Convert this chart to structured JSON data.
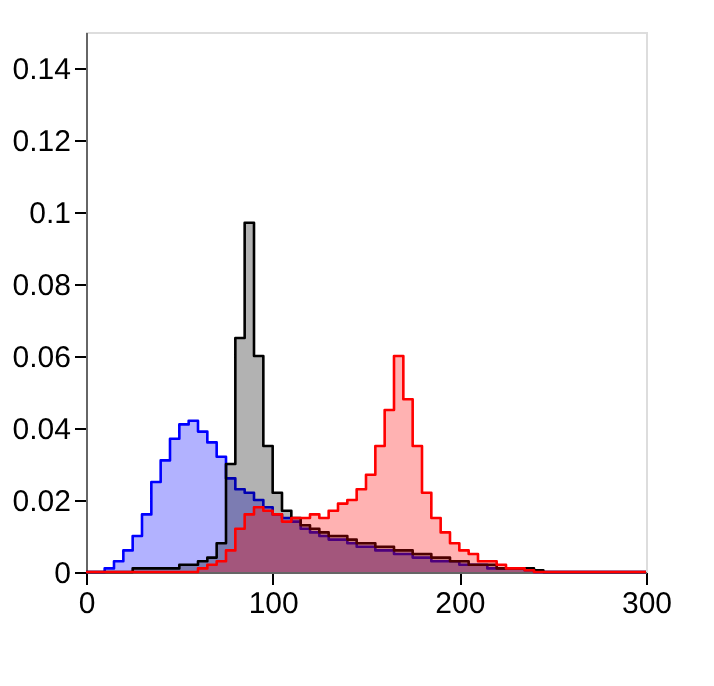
{
  "chart_data": {
    "type": "histogram",
    "bins": [
      0,
      5,
      10,
      15,
      20,
      25,
      30,
      35,
      40,
      45,
      50,
      55,
      60,
      65,
      70,
      75,
      80,
      85,
      90,
      95,
      100,
      105,
      110,
      115,
      120,
      125,
      130,
      135,
      140,
      145,
      150,
      155,
      160,
      165,
      170,
      175,
      180,
      185,
      190,
      195,
      200,
      205,
      210,
      215,
      220,
      225,
      230,
      235,
      240,
      245,
      250,
      255,
      260,
      265,
      270,
      275,
      280,
      285,
      290,
      295,
      300
    ],
    "series": [
      {
        "color": "#0000ff",
        "values": [
          0,
          0,
          0.001,
          0.003,
          0.006,
          0.01,
          0.016,
          0.025,
          0.031,
          0.037,
          0.041,
          0.042,
          0.039,
          0.036,
          0.032,
          0.026,
          0.023,
          0.022,
          0.02,
          0.018,
          0.016,
          0.015,
          0.014,
          0.012,
          0.011,
          0.01,
          0.009,
          0.009,
          0.008,
          0.007,
          0.007,
          0.006,
          0.006,
          0.005,
          0.005,
          0.004,
          0.004,
          0.003,
          0.003,
          0.003,
          0.002,
          0.002,
          0.002,
          0.001,
          0.001,
          0.001,
          0.001,
          0.0005,
          0,
          0,
          0,
          0,
          0,
          0,
          0,
          0,
          0,
          0,
          0,
          0
        ]
      },
      {
        "color": "#000000",
        "values": [
          0,
          0,
          0,
          0,
          0,
          0.001,
          0.001,
          0.001,
          0.001,
          0.001,
          0.002,
          0.002,
          0.003,
          0.004,
          0.008,
          0.03,
          0.065,
          0.097,
          0.06,
          0.035,
          0.022,
          0.017,
          0.015,
          0.013,
          0.012,
          0.011,
          0.01,
          0.01,
          0.009,
          0.008,
          0.008,
          0.007,
          0.007,
          0.006,
          0.006,
          0.005,
          0.005,
          0.004,
          0.004,
          0.003,
          0.003,
          0.002,
          0.002,
          0.002,
          0.001,
          0.001,
          0.001,
          0.001,
          0.0005,
          0,
          0,
          0,
          0,
          0,
          0,
          0,
          0,
          0,
          0,
          0
        ]
      },
      {
        "color": "#ff0000",
        "values": [
          0,
          0,
          0,
          0,
          0,
          0,
          0,
          0,
          0,
          0,
          0,
          0,
          0.001,
          0.002,
          0.003,
          0.006,
          0.012,
          0.016,
          0.018,
          0.017,
          0.016,
          0.014,
          0.015,
          0.015,
          0.016,
          0.015,
          0.017,
          0.019,
          0.02,
          0.023,
          0.027,
          0.035,
          0.045,
          0.06,
          0.048,
          0.035,
          0.022,
          0.015,
          0.011,
          0.008,
          0.006,
          0.005,
          0.003,
          0.003,
          0.002,
          0.001,
          0.001,
          0.0005,
          0,
          0,
          0,
          0,
          0,
          0,
          0,
          0,
          0,
          0,
          0,
          0
        ]
      }
    ],
    "xlim": [
      0,
      300
    ],
    "xticks": [
      0,
      100,
      200,
      300
    ],
    "ylim": [
      0,
      0.15
    ],
    "yticks": [
      0,
      0.02,
      0.04,
      0.06,
      0.08,
      0.1,
      0.12,
      0.14
    ],
    "grid": false
  }
}
